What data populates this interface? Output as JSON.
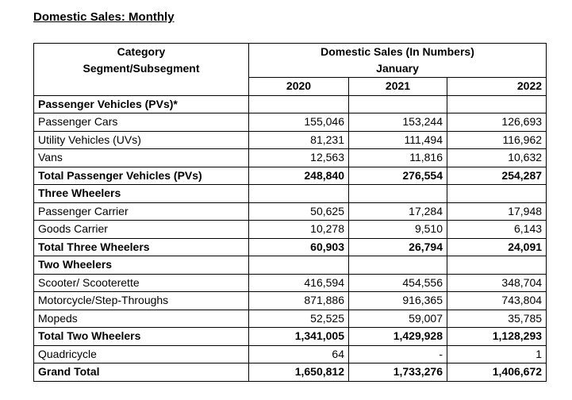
{
  "title": "Domestic Sales: Monthly",
  "header": {
    "category_line1": "Category",
    "category_line2": "Segment/Subsegment",
    "sales_title": "Domestic Sales (In Numbers)",
    "month": "January",
    "years": [
      "2020",
      "2021",
      "2022"
    ]
  },
  "rows": [
    {
      "label": "Passenger Vehicles (PVs)*",
      "type": "section",
      "values": [
        "",
        "",
        ""
      ]
    },
    {
      "label": "Passenger Cars",
      "type": "item",
      "values": [
        "155,046",
        "153,244",
        "126,693"
      ]
    },
    {
      "label": "Utility Vehicles (UVs)",
      "type": "item",
      "values": [
        "81,231",
        "111,494",
        "116,962"
      ]
    },
    {
      "label": "Vans",
      "type": "item",
      "values": [
        "12,563",
        "11,816",
        "10,632"
      ]
    },
    {
      "label": "Total Passenger Vehicles (PVs)",
      "type": "total",
      "values": [
        "248,840",
        "276,554",
        "254,287"
      ]
    },
    {
      "label": "Three Wheelers",
      "type": "section",
      "values": [
        "",
        "",
        ""
      ]
    },
    {
      "label": "Passenger Carrier",
      "type": "item",
      "values": [
        "50,625",
        "17,284",
        "17,948"
      ]
    },
    {
      "label": "Goods Carrier",
      "type": "item",
      "values": [
        "10,278",
        "9,510",
        "6,143"
      ]
    },
    {
      "label": "Total Three Wheelers",
      "type": "total",
      "values": [
        "60,903",
        "26,794",
        "24,091"
      ]
    },
    {
      "label": "Two Wheelers",
      "type": "section",
      "values": [
        "",
        "",
        ""
      ]
    },
    {
      "label": "Scooter/ Scooterette",
      "type": "item",
      "values": [
        "416,594",
        "454,556",
        "348,704"
      ]
    },
    {
      "label": "Motorcycle/Step-Throughs",
      "type": "item",
      "values": [
        "871,886",
        "916,365",
        "743,804"
      ]
    },
    {
      "label": "Mopeds",
      "type": "item",
      "values": [
        "52,525",
        "59,007",
        "35,785"
      ]
    },
    {
      "label": "Total Two Wheelers",
      "type": "total",
      "values": [
        "1,341,005",
        "1,429,928",
        "1,128,293"
      ]
    },
    {
      "label": "Quadricycle",
      "type": "item",
      "values": [
        "64",
        "-",
        "1"
      ]
    },
    {
      "label": "Grand Total",
      "type": "total",
      "values": [
        "1,650,812",
        "1,733,276",
        "1,406,672"
      ]
    }
  ]
}
